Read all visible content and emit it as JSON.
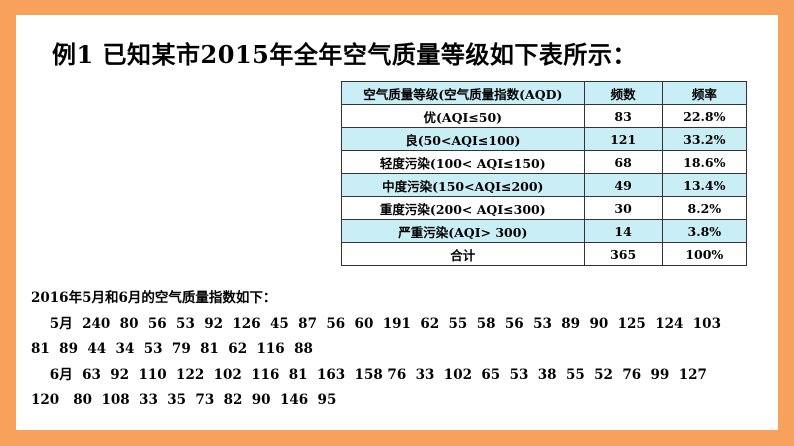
{
  "title": "例1 已知某市2015年全年空气质量等级如下表所示：",
  "table": {
    "header": [
      "空气质量等级(空气质量指数(AQD)",
      "频数",
      "频率"
    ],
    "rows": [
      [
        "优(AQI≤50)",
        "83",
        "22.8%"
      ],
      [
        "良(50<AQI≤100)",
        "121",
        "33.2%"
      ],
      [
        "轻度污染(100< AQI≤150)",
        "68",
        "18.6%"
      ],
      [
        "中度污染(150<AQI≤200)",
        "49",
        "13.4%"
      ],
      [
        "重度污染(200< AQI≤300)",
        "30",
        "8.2%"
      ],
      [
        "严重污染(AQI> 300)",
        "14",
        "3.8%"
      ]
    ],
    "total": [
      "合计",
      "365",
      "100%"
    ]
  },
  "data_lines": [
    "2016年5月和6月的空气质量指数如下：",
    "    5月  240  80  56  53  92  126  45  87  56  60  191  62  55  58  56  53  89  90  125  124  103",
    "81  89  44  34  53  79  81  62  116  88",
    "    6月  63  92  110  122  102  116  81  163  158 76  33  102  65  53  38  55  52  76  99  127",
    "120   80  108  33  35  73  82  90  146  95"
  ]
}
